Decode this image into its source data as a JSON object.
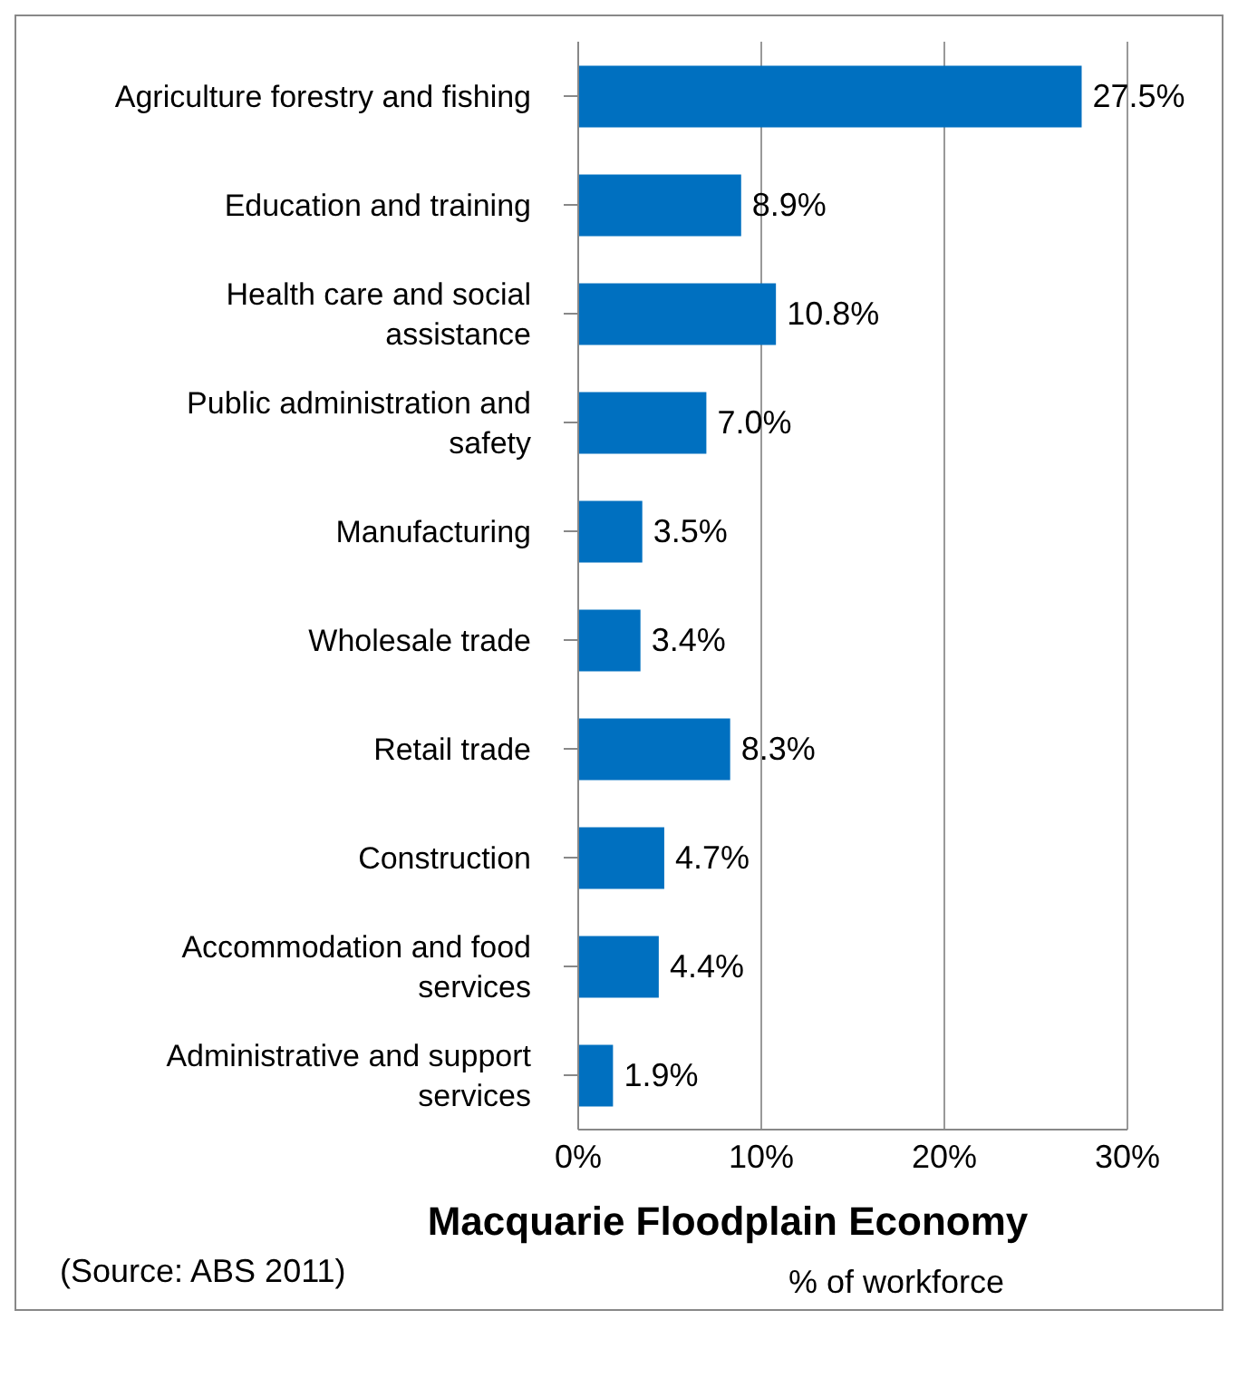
{
  "chart_data": {
    "type": "bar",
    "orientation": "horizontal",
    "title": "Macquarie Floodplain Economy",
    "xlabel": "% of workforce",
    "categories": [
      "Agriculture forestry and fishing",
      "Education and training",
      "Health care and social assistance",
      "Public administration and safety",
      "Manufacturing",
      "Wholesale trade",
      "Retail trade",
      "Construction",
      "Accommodation and food services",
      "Administrative and support services"
    ],
    "values": [
      27.5,
      8.9,
      10.8,
      7.0,
      3.5,
      3.4,
      8.3,
      4.7,
      4.4,
      1.9
    ],
    "value_labels": [
      "27.5%",
      "8.9%",
      "10.8%",
      "7.0%",
      "3.5%",
      "3.4%",
      "8.3%",
      "4.7%",
      "4.4%",
      "1.9%"
    ],
    "color": "#0070c0",
    "xlim": [
      0,
      30
    ],
    "xticks": [
      {
        "value": 0,
        "label": "0%"
      },
      {
        "value": 10,
        "label": "10%"
      },
      {
        "value": 20,
        "label": "20%"
      },
      {
        "value": 30,
        "label": "30%"
      }
    ],
    "grid": "x",
    "legend": false,
    "annotations": [
      "(Source: ABS 2011)"
    ]
  }
}
